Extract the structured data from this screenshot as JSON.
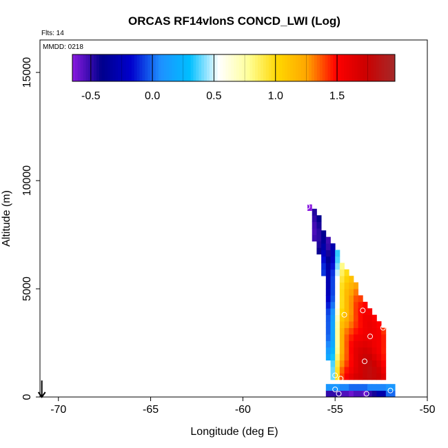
{
  "chart_data": {
    "type": "heatmap",
    "title": "ORCAS RF14vlonS CONCD_LWI (Log)",
    "subtitle": "Flts: 14",
    "annotation": "MMDD: 0218",
    "xlabel": "Longitude (deg E)",
    "ylabel": "Altitude (m)",
    "xlim": [
      -71,
      -50
    ],
    "ylim": [
      0,
      16500
    ],
    "x_ticks": [
      -70,
      -65,
      -60,
      -55,
      -50
    ],
    "y_ticks": [
      0,
      5000,
      10000,
      15000
    ],
    "x_tick_labels": [
      "-70",
      "-65",
      "-60",
      "-55",
      "-50"
    ],
    "y_tick_labels": [
      "0",
      "5000",
      "10000",
      "15000"
    ],
    "cell_size": {
      "lon": 0.25,
      "alt": 300
    },
    "colorbar": {
      "range": [
        -0.65,
        1.97
      ],
      "ticks": [
        -0.5,
        0.0,
        0.5,
        1.0,
        1.5
      ],
      "tick_labels": [
        "-0.5",
        "0.0",
        "0.5",
        "1.0",
        "1.5"
      ],
      "colors": [
        "#8a1be0",
        "#00008b",
        "#0000cd",
        "#1e90ff",
        "#00bfff",
        "#ffffff",
        "#ffff99",
        "#ffd700",
        "#ffa500",
        "#ff0000",
        "#cc0000",
        "#a52a2a"
      ]
    },
    "profile_columns": [
      {
        "lon": -56.25,
        "bottom": 7200,
        "top": 8500,
        "base": -0.5,
        "slope": 0.0
      },
      {
        "lon": -56.0,
        "bottom": 6600,
        "top": 8200,
        "base": -0.45,
        "slope": 0.0
      },
      {
        "lon": -55.75,
        "bottom": 5600,
        "top": 7700,
        "base": -0.1,
        "slope": -0.00015
      },
      {
        "lon": -55.5,
        "bottom": 1700,
        "top": 7200,
        "base": 0.15,
        "slope": -0.00012
      },
      {
        "lon": -55.25,
        "bottom": 800,
        "top": 6900,
        "base": 0.4,
        "slope": -0.00011
      },
      {
        "lon": -55.0,
        "bottom": 800,
        "top": 6600,
        "base": 0.95,
        "slope": -0.0001
      },
      {
        "lon": -54.75,
        "bottom": 800,
        "top": 6200,
        "base": 1.35,
        "slope": -0.0001
      },
      {
        "lon": -54.5,
        "bottom": 800,
        "top": 5800,
        "base": 1.5,
        "slope": -0.0001
      },
      {
        "lon": -54.25,
        "bottom": 800,
        "top": 5500,
        "base": 1.6,
        "slope": -0.0001
      },
      {
        "lon": -54.0,
        "bottom": 800,
        "top": 5100,
        "base": 1.7,
        "slope": -0.0001
      },
      {
        "lon": -53.75,
        "bottom": 800,
        "top": 4700,
        "base": 1.75,
        "slope": -0.0001
      },
      {
        "lon": -53.5,
        "bottom": 800,
        "top": 4300,
        "base": 1.8,
        "slope": -0.0001
      },
      {
        "lon": -53.25,
        "bottom": 800,
        "top": 4000,
        "base": 1.8,
        "slope": -0.0001
      },
      {
        "lon": -53.0,
        "bottom": 800,
        "top": 3700,
        "base": 1.75,
        "slope": -0.0001
      },
      {
        "lon": -52.75,
        "bottom": 800,
        "top": 3400,
        "base": 1.7,
        "slope": -0.0001
      },
      {
        "lon": -52.5,
        "bottom": 800,
        "top": 3200,
        "base": 1.6,
        "slope": -0.0001
      }
    ],
    "bottom_strip": [
      {
        "lon": -55.5,
        "values": [
          -0.5,
          0.1
        ]
      },
      {
        "lon": -55.25,
        "values": [
          -0.5,
          0.1
        ]
      },
      {
        "lon": -55.0,
        "values": [
          -0.5,
          0.1
        ]
      },
      {
        "lon": -54.75,
        "values": [
          -0.55,
          0.05
        ]
      },
      {
        "lon": -54.5,
        "values": [
          -0.55,
          0.05
        ]
      },
      {
        "lon": -54.25,
        "values": [
          -0.6,
          0.0
        ]
      },
      {
        "lon": -54.0,
        "values": [
          -0.55,
          0.0
        ]
      },
      {
        "lon": -53.75,
        "values": [
          -0.55,
          0.0
        ]
      },
      {
        "lon": -53.5,
        "values": [
          -0.6,
          0.0
        ]
      },
      {
        "lon": -53.25,
        "values": [
          -0.5,
          0.05
        ]
      },
      {
        "lon": -53.0,
        "values": [
          -0.45,
          0.05
        ]
      },
      {
        "lon": -52.75,
        "values": [
          -0.3,
          0.05
        ]
      },
      {
        "lon": -52.5,
        "values": [
          -0.3,
          0.05
        ]
      },
      {
        "lon": -52.25,
        "values": [
          0.0,
          0.1
        ]
      },
      {
        "lon": -52.0,
        "values": [
          0.0,
          0.1
        ]
      }
    ],
    "isolated_cells": [
      {
        "lon": -56.5,
        "alt": 8750,
        "value": -0.65
      }
    ],
    "circles": [
      {
        "lon": -56.5,
        "alt": 8800
      },
      {
        "lon": -54.5,
        "alt": 3800
      },
      {
        "lon": -53.5,
        "alt": 4000
      },
      {
        "lon": -53.1,
        "alt": 2800
      },
      {
        "lon": -52.4,
        "alt": 3200
      },
      {
        "lon": -53.4,
        "alt": 1650
      },
      {
        "lon": -55.0,
        "alt": 1000
      },
      {
        "lon": -54.7,
        "alt": 850
      },
      {
        "lon": -55.0,
        "alt": 350
      },
      {
        "lon": -54.8,
        "alt": 150
      },
      {
        "lon": -53.3,
        "alt": 150
      },
      {
        "lon": -52.0,
        "alt": 300
      }
    ],
    "arrow": {
      "lon": -70.9,
      "alt_from": 700,
      "alt_to": 0
    }
  }
}
